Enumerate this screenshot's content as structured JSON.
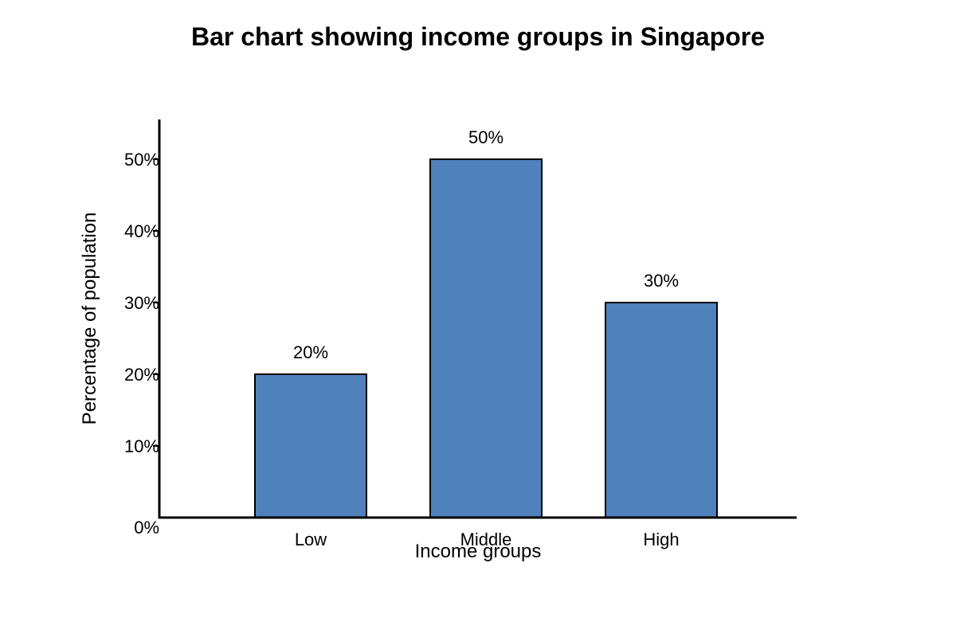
{
  "chart_data": {
    "type": "bar",
    "title": "Bar chart showing income groups in Singapore",
    "xlabel": "Income groups",
    "ylabel": "Percentage of population",
    "categories": [
      "Low",
      "Middle",
      "High"
    ],
    "values": [
      20,
      50,
      30
    ],
    "value_labels": [
      "20%",
      "50%",
      "30%"
    ],
    "yticks": [
      0,
      10,
      20,
      30,
      40,
      50
    ],
    "ytick_labels": [
      "0%",
      "10%",
      "20%",
      "30%",
      "40%",
      "50%"
    ],
    "ylim": [
      0,
      55
    ],
    "grid": false,
    "bar_color": "#4f81bd",
    "bar_edge_color": "#000000"
  }
}
